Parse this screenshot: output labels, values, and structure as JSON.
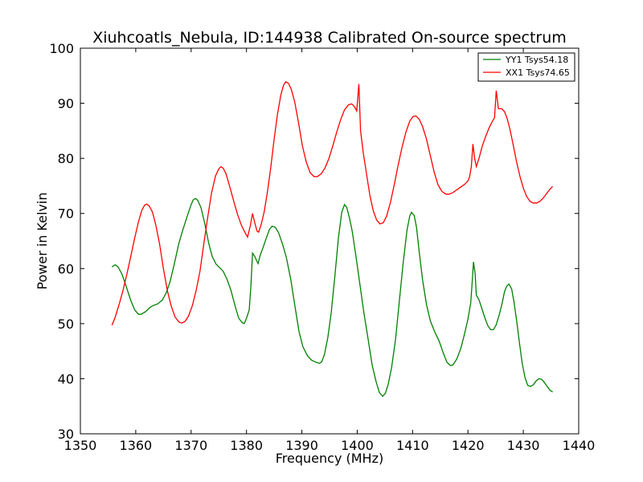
{
  "chart_data": {
    "type": "line",
    "title": "Xiuhcoatls_Nebula, ID:144938 Calibrated On-source spectrum",
    "xlabel": "Frequency (MHz)",
    "ylabel": "Power in Kelvin",
    "xlim": [
      1350,
      1440
    ],
    "ylim": [
      30,
      100
    ],
    "xticks": [
      1350,
      1360,
      1370,
      1380,
      1390,
      1400,
      1410,
      1420,
      1430,
      1440
    ],
    "yticks": [
      30,
      40,
      50,
      60,
      70,
      80,
      90,
      100
    ],
    "grid": false,
    "legend_position": "top-right",
    "series": [
      {
        "name": "YY1 Tsys54.18",
        "color": "#008000",
        "points": [
          [
            1355.7,
            60.3
          ],
          [
            1356.3,
            60.7
          ],
          [
            1356.8,
            60.3
          ],
          [
            1357.5,
            59
          ],
          [
            1358.2,
            57
          ],
          [
            1359,
            54.5
          ],
          [
            1359.8,
            52.5
          ],
          [
            1360.5,
            51.7
          ],
          [
            1361,
            51.7
          ],
          [
            1361.8,
            52.2
          ],
          [
            1362.5,
            52.9
          ],
          [
            1363.2,
            53.3
          ],
          [
            1364,
            53.6
          ],
          [
            1364.8,
            54.3
          ],
          [
            1365.5,
            55.6
          ],
          [
            1366.2,
            57.6
          ],
          [
            1367,
            61
          ],
          [
            1367.8,
            64.6
          ],
          [
            1368.5,
            67
          ],
          [
            1369.3,
            69.5
          ],
          [
            1370,
            71.6
          ],
          [
            1370.4,
            72.5
          ],
          [
            1370.8,
            72.7
          ],
          [
            1371.2,
            72.4
          ],
          [
            1371.8,
            71
          ],
          [
            1372.5,
            68
          ],
          [
            1373.2,
            64.5
          ],
          [
            1373.8,
            62.2
          ],
          [
            1374.5,
            60.8
          ],
          [
            1375.2,
            60.1
          ],
          [
            1375.8,
            59.5
          ],
          [
            1376.5,
            58
          ],
          [
            1377.2,
            56
          ],
          [
            1378,
            53
          ],
          [
            1378.6,
            51
          ],
          [
            1379.2,
            50.2
          ],
          [
            1379.6,
            50
          ],
          [
            1380,
            51
          ],
          [
            1380.5,
            52.5
          ],
          [
            1380.8,
            57
          ],
          [
            1381.1,
            62.8
          ],
          [
            1381.5,
            62.2
          ],
          [
            1381.8,
            61.5
          ],
          [
            1382.1,
            60.9
          ],
          [
            1382.5,
            62.5
          ],
          [
            1383,
            63.8
          ],
          [
            1383.5,
            65.3
          ],
          [
            1384.1,
            67
          ],
          [
            1384.6,
            67.7
          ],
          [
            1385.2,
            67.5
          ],
          [
            1385.8,
            66.5
          ],
          [
            1386.5,
            64.5
          ],
          [
            1387.2,
            62
          ],
          [
            1388,
            58
          ],
          [
            1388.7,
            53.5
          ],
          [
            1389.5,
            48.5
          ],
          [
            1390.2,
            45.8
          ],
          [
            1391,
            44.2
          ],
          [
            1391.7,
            43.4
          ],
          [
            1392.5,
            43
          ],
          [
            1393.2,
            42.8
          ],
          [
            1393.6,
            43.1
          ],
          [
            1394.1,
            44.5
          ],
          [
            1394.7,
            47.5
          ],
          [
            1395.3,
            52
          ],
          [
            1396,
            59
          ],
          [
            1396.6,
            65.5
          ],
          [
            1397.2,
            70.2
          ],
          [
            1397.7,
            71.6
          ],
          [
            1398.1,
            71.1
          ],
          [
            1398.6,
            69.2
          ],
          [
            1399.1,
            66.8
          ],
          [
            1399.8,
            62
          ],
          [
            1400.5,
            57
          ],
          [
            1401.2,
            52
          ],
          [
            1402,
            47
          ],
          [
            1402.7,
            42.5
          ],
          [
            1403.4,
            39.5
          ],
          [
            1404,
            37.5
          ],
          [
            1404.6,
            36.8
          ],
          [
            1405.1,
            37.4
          ],
          [
            1405.6,
            39
          ],
          [
            1406.2,
            42
          ],
          [
            1406.9,
            47
          ],
          [
            1407.6,
            54
          ],
          [
            1408.3,
            61
          ],
          [
            1409,
            67
          ],
          [
            1409.5,
            69.6
          ],
          [
            1409.8,
            70.2
          ],
          [
            1410.3,
            69.6
          ],
          [
            1410.7,
            67.5
          ],
          [
            1411.2,
            63
          ],
          [
            1411.8,
            58
          ],
          [
            1412.5,
            53.5
          ],
          [
            1413.2,
            50.5
          ],
          [
            1414,
            48.5
          ],
          [
            1414.8,
            46.8
          ],
          [
            1415.5,
            44.8
          ],
          [
            1416.2,
            43
          ],
          [
            1416.8,
            42.4
          ],
          [
            1417.3,
            42.5
          ],
          [
            1418,
            43.6
          ],
          [
            1418.7,
            45.5
          ],
          [
            1419.3,
            47.8
          ],
          [
            1420,
            50.8
          ],
          [
            1420.5,
            53.8
          ],
          [
            1420.8,
            58
          ],
          [
            1421,
            61.2
          ],
          [
            1421.3,
            59
          ],
          [
            1421.5,
            55.2
          ],
          [
            1422,
            54.3
          ],
          [
            1422.5,
            52.8
          ],
          [
            1423,
            51.2
          ],
          [
            1423.6,
            49.6
          ],
          [
            1424.1,
            48.9
          ],
          [
            1424.6,
            48.9
          ],
          [
            1425.1,
            49.8
          ],
          [
            1425.7,
            51.8
          ],
          [
            1426.2,
            53.8
          ],
          [
            1426.6,
            55.8
          ],
          [
            1427,
            56.8
          ],
          [
            1427.4,
            57.2
          ],
          [
            1427.9,
            56.3
          ],
          [
            1428.3,
            54
          ],
          [
            1428.8,
            50.5
          ],
          [
            1429.3,
            46.5
          ],
          [
            1429.8,
            42.8
          ],
          [
            1430.3,
            40.2
          ],
          [
            1430.8,
            38.8
          ],
          [
            1431.3,
            38.6
          ],
          [
            1431.8,
            38.9
          ],
          [
            1432.3,
            39.6
          ],
          [
            1432.8,
            40
          ],
          [
            1433.3,
            39.9
          ],
          [
            1433.8,
            39.3
          ],
          [
            1434.3,
            38.6
          ],
          [
            1434.8,
            37.9
          ],
          [
            1435.3,
            37.6
          ]
        ]
      },
      {
        "name": "XX1 Tsys74.65",
        "color": "#ff0000",
        "points": [
          [
            1355.7,
            49.7
          ],
          [
            1356.3,
            51.2
          ],
          [
            1357,
            53.5
          ],
          [
            1357.7,
            56
          ],
          [
            1358.4,
            59
          ],
          [
            1359.1,
            62.2
          ],
          [
            1359.8,
            65.5
          ],
          [
            1360.5,
            68.5
          ],
          [
            1361.1,
            70.6
          ],
          [
            1361.6,
            71.5
          ],
          [
            1362,
            71.7
          ],
          [
            1362.4,
            71.4
          ],
          [
            1363,
            70.3
          ],
          [
            1363.6,
            68
          ],
          [
            1364.3,
            64.5
          ],
          [
            1365,
            60
          ],
          [
            1365.7,
            56
          ],
          [
            1366.4,
            53.2
          ],
          [
            1367.1,
            51.2
          ],
          [
            1367.8,
            50.3
          ],
          [
            1368.3,
            50.1
          ],
          [
            1368.9,
            50.4
          ],
          [
            1369.5,
            51.3
          ],
          [
            1370.2,
            53.2
          ],
          [
            1370.9,
            56
          ],
          [
            1371.6,
            59.5
          ],
          [
            1372.3,
            64.5
          ],
          [
            1373,
            69.3
          ],
          [
            1373.7,
            73.8
          ],
          [
            1374.4,
            76.8
          ],
          [
            1375,
            78.1
          ],
          [
            1375.4,
            78.5
          ],
          [
            1375.8,
            78.2
          ],
          [
            1376.3,
            77.2
          ],
          [
            1377,
            74.8
          ],
          [
            1377.7,
            72.2
          ],
          [
            1378.4,
            69.8
          ],
          [
            1379.1,
            67.8
          ],
          [
            1379.7,
            66.6
          ],
          [
            1380.2,
            65.7
          ],
          [
            1380.7,
            67.8
          ],
          [
            1381.1,
            70
          ],
          [
            1381.5,
            68.3
          ],
          [
            1381.9,
            66.8
          ],
          [
            1382.2,
            66.6
          ],
          [
            1382.7,
            68.2
          ],
          [
            1383.2,
            70.3
          ],
          [
            1383.8,
            74
          ],
          [
            1384.4,
            78.5
          ],
          [
            1385,
            83.5
          ],
          [
            1385.6,
            88
          ],
          [
            1386.2,
            91.5
          ],
          [
            1386.7,
            93.3
          ],
          [
            1387.1,
            93.9
          ],
          [
            1387.6,
            93.6
          ],
          [
            1388.1,
            92.5
          ],
          [
            1388.7,
            90.3
          ],
          [
            1389.4,
            86.5
          ],
          [
            1390.1,
            82.3
          ],
          [
            1390.8,
            79.3
          ],
          [
            1391.5,
            77.4
          ],
          [
            1392.2,
            76.7
          ],
          [
            1392.8,
            76.7
          ],
          [
            1393.5,
            77.2
          ],
          [
            1394.2,
            78.3
          ],
          [
            1394.9,
            80
          ],
          [
            1395.6,
            82.3
          ],
          [
            1396.3,
            84.8
          ],
          [
            1397,
            87
          ],
          [
            1397.7,
            88.8
          ],
          [
            1398.4,
            89.7
          ],
          [
            1399,
            89.9
          ],
          [
            1399.5,
            89.4
          ],
          [
            1399.9,
            88.6
          ],
          [
            1400.3,
            93.5
          ],
          [
            1400.6,
            85
          ],
          [
            1401.1,
            81
          ],
          [
            1401.7,
            77
          ],
          [
            1402.3,
            73.2
          ],
          [
            1402.9,
            70.5
          ],
          [
            1403.5,
            68.8
          ],
          [
            1404.1,
            68.1
          ],
          [
            1404.7,
            68.3
          ],
          [
            1405.3,
            69.5
          ],
          [
            1406,
            72
          ],
          [
            1406.7,
            75.3
          ],
          [
            1407.4,
            78.8
          ],
          [
            1408.1,
            82
          ],
          [
            1408.8,
            84.8
          ],
          [
            1409.5,
            86.8
          ],
          [
            1410.1,
            87.6
          ],
          [
            1410.6,
            87.7
          ],
          [
            1411.2,
            87.1
          ],
          [
            1411.8,
            85.8
          ],
          [
            1412.5,
            83.5
          ],
          [
            1413.2,
            80.5
          ],
          [
            1413.9,
            77.5
          ],
          [
            1414.6,
            75.2
          ],
          [
            1415.3,
            74
          ],
          [
            1416,
            73.5
          ],
          [
            1416.6,
            73.5
          ],
          [
            1417.3,
            73.8
          ],
          [
            1418,
            74.3
          ],
          [
            1418.7,
            74.8
          ],
          [
            1419.4,
            75.3
          ],
          [
            1420,
            75.9
          ],
          [
            1420.3,
            76.7
          ],
          [
            1420.6,
            78.5
          ],
          [
            1420.9,
            82.6
          ],
          [
            1421.2,
            80
          ],
          [
            1421.5,
            78.5
          ],
          [
            1422,
            80
          ],
          [
            1422.6,
            82.3
          ],
          [
            1423.2,
            84
          ],
          [
            1423.8,
            85.5
          ],
          [
            1424.4,
            86.7
          ],
          [
            1424.8,
            87.4
          ],
          [
            1425.1,
            92.3
          ],
          [
            1425.5,
            89
          ],
          [
            1426.1,
            89
          ],
          [
            1426.6,
            88.5
          ],
          [
            1427.1,
            87.2
          ],
          [
            1427.6,
            85.2
          ],
          [
            1428.2,
            82.3
          ],
          [
            1428.8,
            79.3
          ],
          [
            1429.4,
            76.7
          ],
          [
            1430,
            74.6
          ],
          [
            1430.6,
            73.1
          ],
          [
            1431.2,
            72.2
          ],
          [
            1431.8,
            71.9
          ],
          [
            1432.4,
            71.9
          ],
          [
            1433,
            72.2
          ],
          [
            1433.6,
            72.8
          ],
          [
            1434.2,
            73.6
          ],
          [
            1434.8,
            74.4
          ],
          [
            1435.3,
            74.9
          ]
        ]
      }
    ]
  }
}
